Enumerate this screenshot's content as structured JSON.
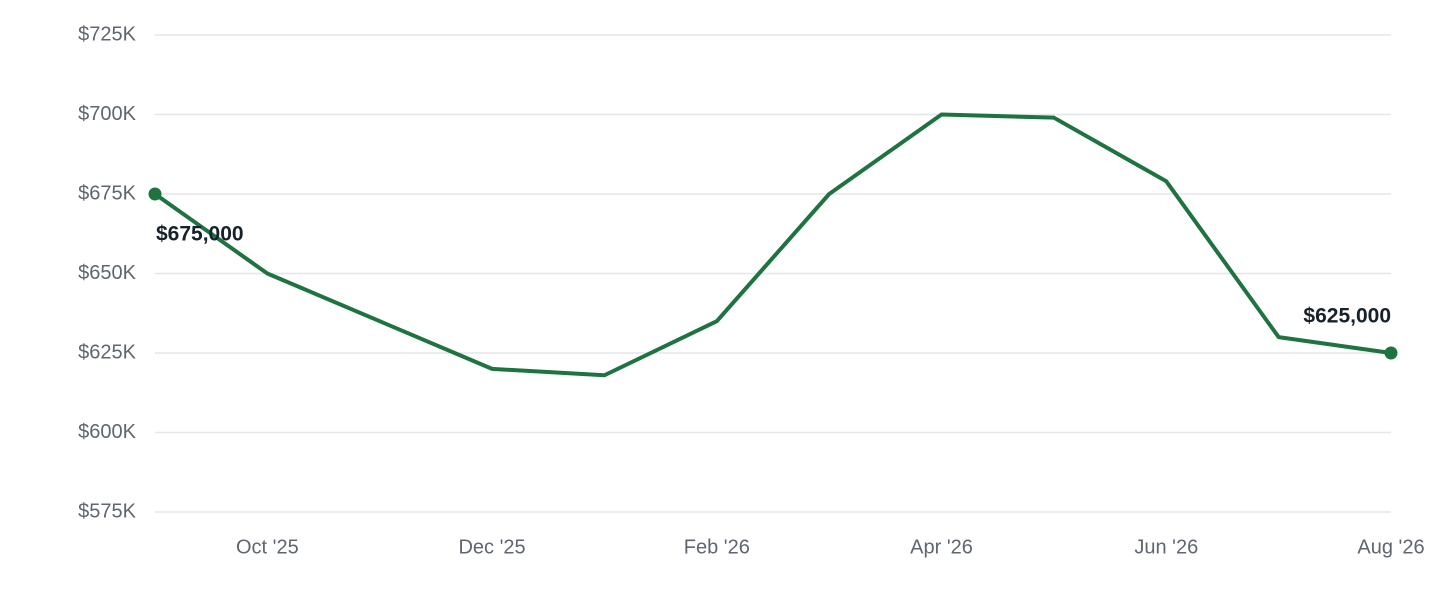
{
  "chart_data": {
    "type": "line",
    "categories": [
      null,
      "Oct '25",
      null,
      "Dec '25",
      null,
      "Feb '26",
      null,
      "Apr '26",
      null,
      "Jun '26",
      null,
      "Aug '26"
    ],
    "series": [
      {
        "color": "#1e7340",
        "values": [
          675000,
          650000,
          635000,
          620000,
          618000,
          635000,
          675000,
          700000,
          699000,
          679000,
          630000,
          625000
        ],
        "value_labels": [
          "$675,000",
          null,
          null,
          null,
          null,
          null,
          null,
          null,
          null,
          null,
          null,
          "$625,000"
        ]
      }
    ],
    "ylim": [
      575000,
      725000
    ],
    "yticks": [
      {
        "value": 575000,
        "label": "$575K"
      },
      {
        "value": 600000,
        "label": "$600K"
      },
      {
        "value": 625000,
        "label": "$625K"
      },
      {
        "value": 650000,
        "label": "$650K"
      },
      {
        "value": 675000,
        "label": "$675K"
      },
      {
        "value": 700000,
        "label": "$700K"
      },
      {
        "value": 725000,
        "label": "$725K"
      }
    ],
    "grid": true
  }
}
